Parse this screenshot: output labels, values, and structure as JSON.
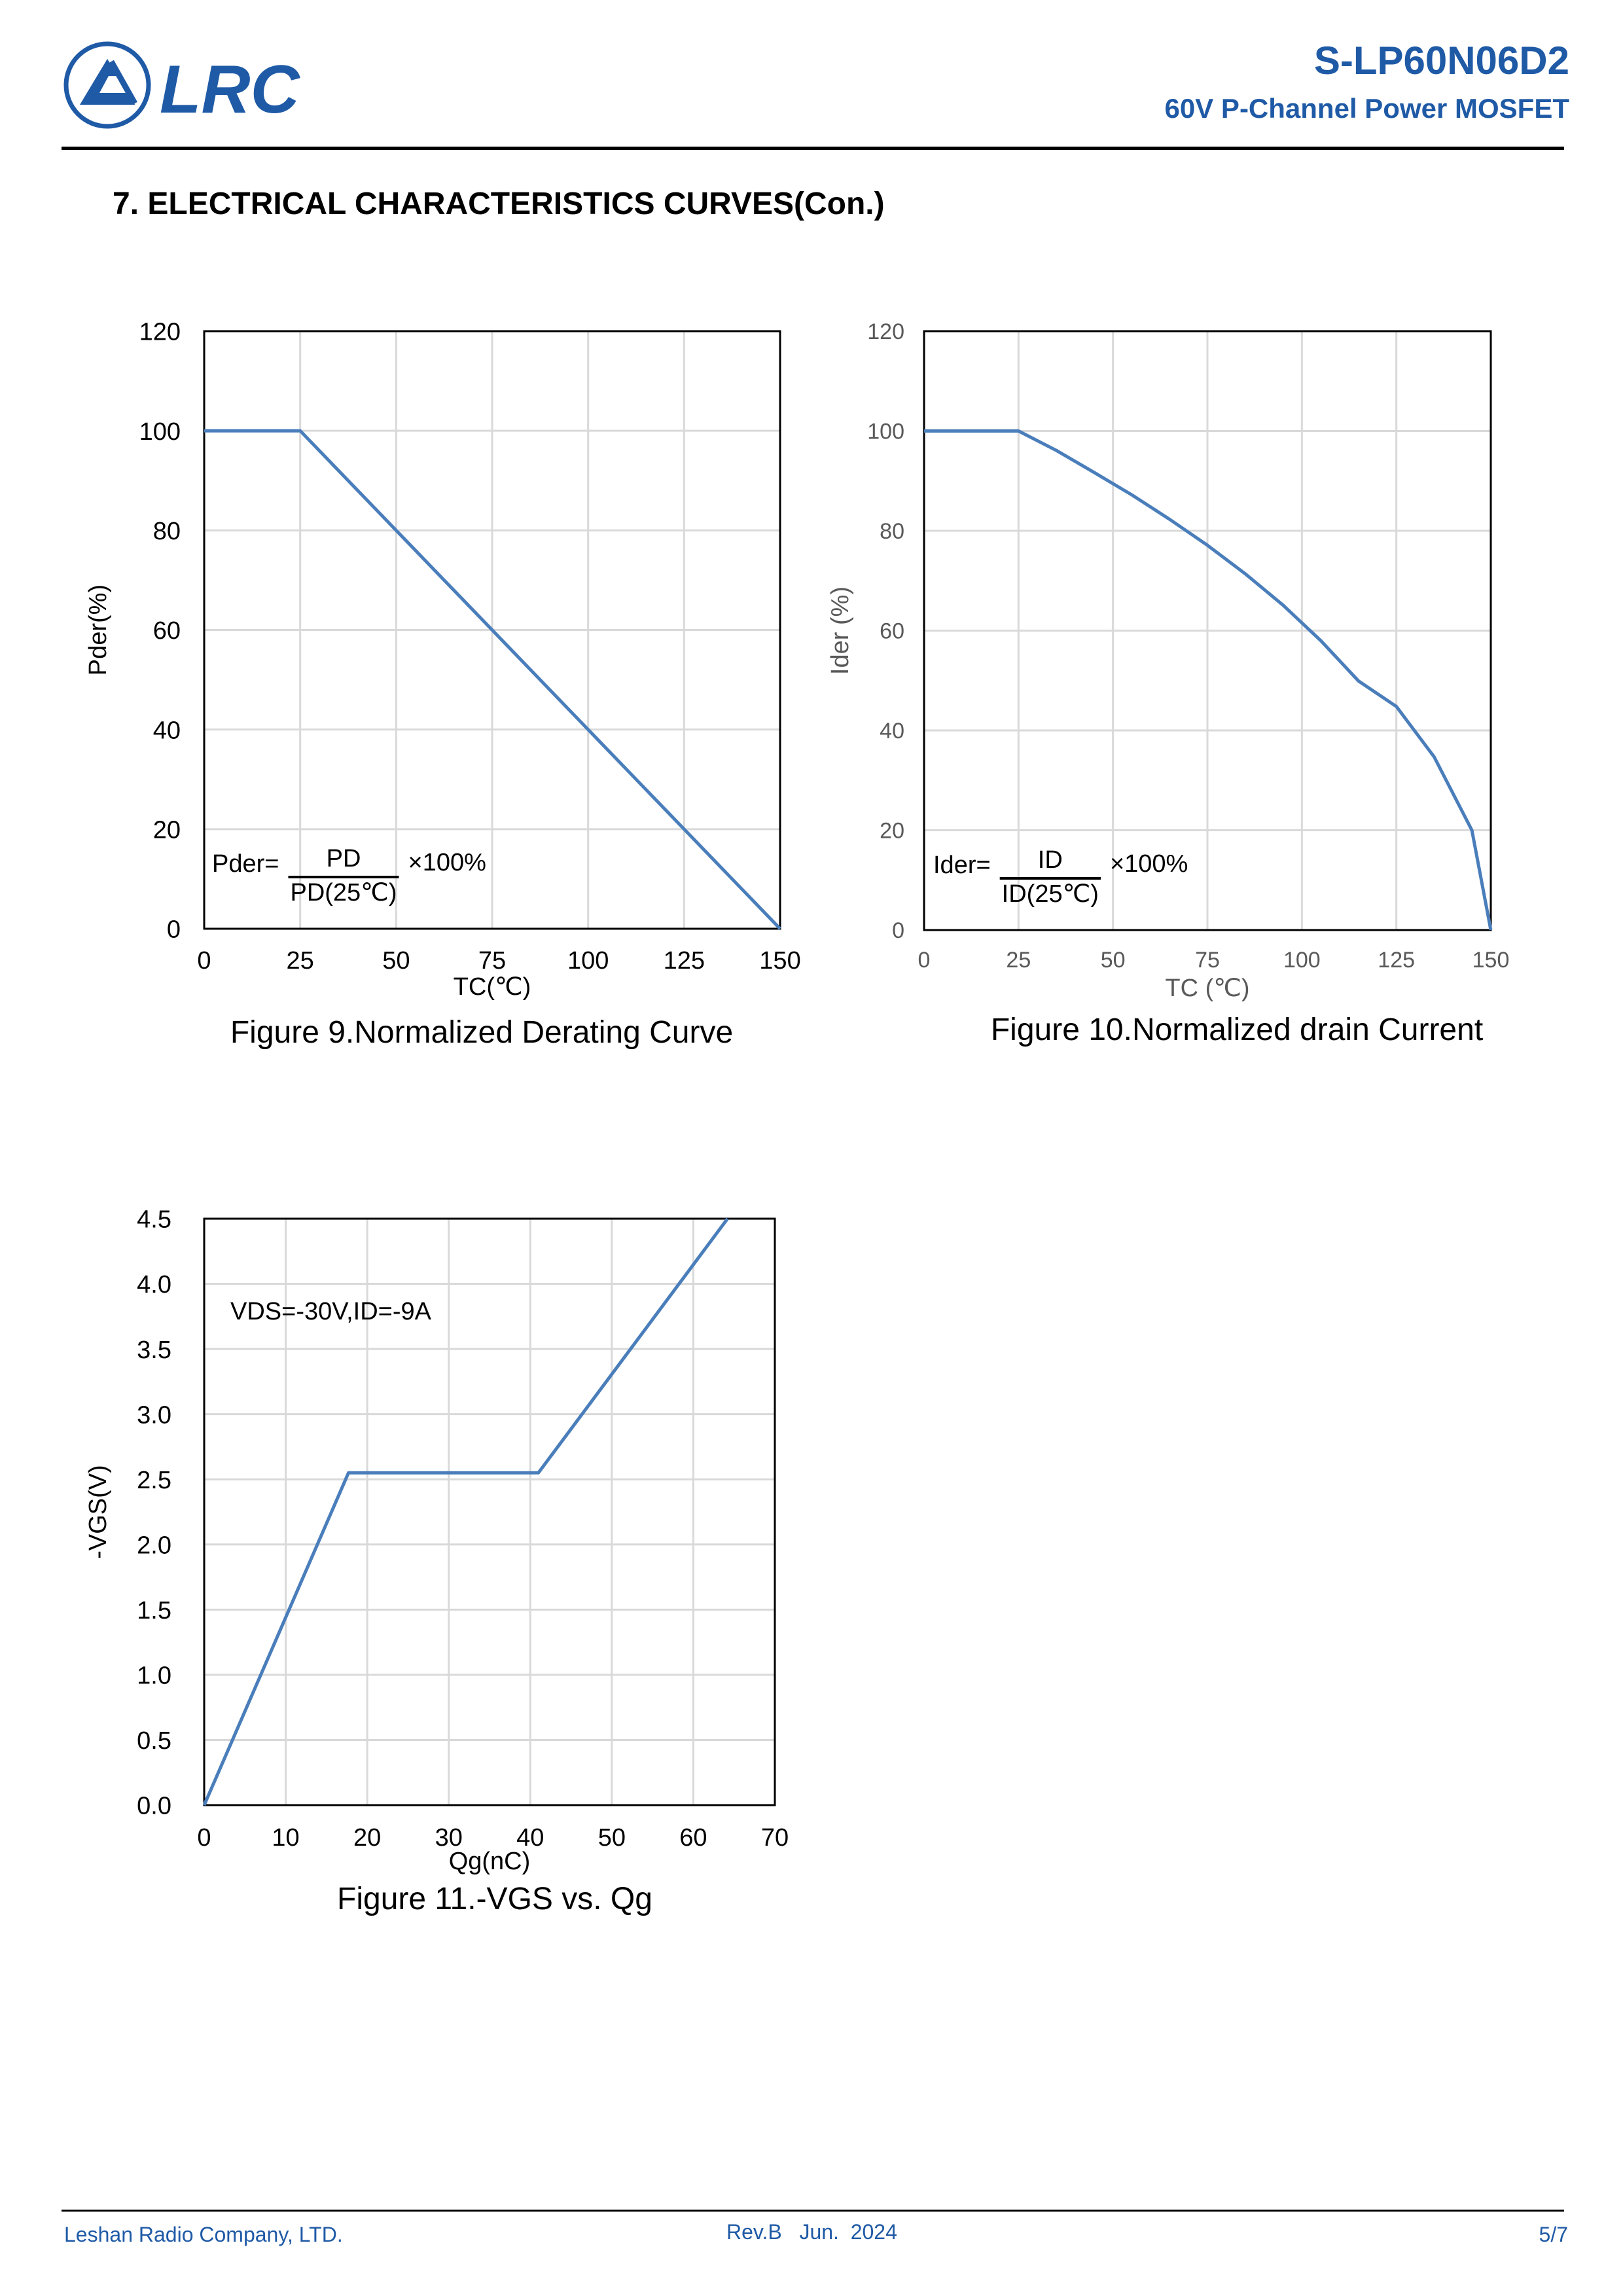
{
  "header": {
    "logo_text": "LRC",
    "part_number": "S-LP60N06D2",
    "subtitle": "60V P-Channel Power MOSFET"
  },
  "section": {
    "title": "7. ELECTRICAL CHARACTERISTICS CURVES(Con.)"
  },
  "colors": {
    "brand": "#1f5aa6",
    "series": "#4a7ebb",
    "grid": "#d9d9d9",
    "gray_text": "#595959"
  },
  "chart_data": [
    {
      "id": "fig9",
      "type": "line",
      "caption": "Figure 9.Normalized Derating Curve",
      "xlabel": "TC(℃)",
      "ylabel": "Pder(%)",
      "xlim": [
        0,
        150
      ],
      "ylim": [
        0,
        120
      ],
      "xticks": [
        "0",
        "25",
        "50",
        "75",
        "100",
        "125",
        "150"
      ],
      "yticks": [
        "0",
        "20",
        "40",
        "60",
        "80",
        "100",
        "120"
      ],
      "grid": true,
      "legend": "none",
      "formula": {
        "lhs": "Pder=",
        "numerator": "PD",
        "denominator": "PD(25℃)",
        "rhs": "×100%"
      },
      "x": [
        0,
        25,
        150
      ],
      "y": [
        100,
        100,
        0
      ]
    },
    {
      "id": "fig10",
      "type": "line",
      "caption": "Figure 10.Normalized drain Current",
      "xlabel": "TC (℃)",
      "ylabel": "Ider (%)",
      "xlim": [
        0,
        150
      ],
      "ylim": [
        0,
        120
      ],
      "xticks": [
        "0",
        "25",
        "50",
        "75",
        "100",
        "125",
        "150"
      ],
      "yticks": [
        "0",
        "20",
        "40",
        "60",
        "80",
        "100",
        "120"
      ],
      "grid": true,
      "legend": "none",
      "formula": {
        "lhs": "Ider=",
        "numerator": "ID",
        "denominator": "ID(25℃)",
        "rhs": "×100%"
      },
      "x": [
        0,
        25,
        35,
        45,
        55,
        65,
        75,
        85,
        95,
        105,
        115,
        125,
        135,
        145,
        150
      ],
      "y": [
        100,
        100,
        96.1,
        91.7,
        87.2,
        82.3,
        77.1,
        71.4,
        65.1,
        58,
        49.9,
        44.8,
        34.7,
        20,
        0
      ]
    },
    {
      "id": "fig11",
      "type": "line",
      "caption": "Figure 11.-VGS vs. Qg",
      "xlabel": "Qg(nC)",
      "ylabel": "-VGS(V)",
      "xlim": [
        0,
        70
      ],
      "ylim": [
        0,
        4.5
      ],
      "xticks": [
        "0",
        "10",
        "20",
        "30",
        "40",
        "50",
        "60",
        "70"
      ],
      "yticks": [
        "0.0",
        "0.5",
        "1.0",
        "1.5",
        "2.0",
        "2.5",
        "3.0",
        "3.5",
        "4.0",
        "4.5"
      ],
      "grid": true,
      "legend": "none",
      "annotation": "VDS=-30V,ID=-9A",
      "x": [
        0,
        17.7,
        41,
        64.2
      ],
      "y": [
        0,
        2.55,
        2.55,
        4.5
      ]
    }
  ],
  "footer": {
    "company": "Leshan Radio Company, LTD.",
    "revision": "Rev.B   Jun.  2024",
    "page": "5/7"
  }
}
